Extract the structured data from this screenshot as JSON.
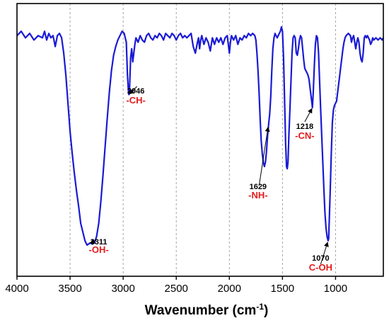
{
  "chart_data": {
    "type": "line",
    "xlabel": "Wavenumber (cm",
    "xlabel_sup": "-1",
    "xlabel_close": ")",
    "ylabel": "",
    "xlim": [
      4000,
      550
    ],
    "x_reversed": true,
    "grid": "vertical dashed",
    "line_color": "#1a1ad6",
    "annotation_color": "#e31b1b",
    "x_ticks": [
      {
        "value": 4000,
        "label": "4000"
      },
      {
        "value": 3500,
        "label": "3500"
      },
      {
        "value": 3000,
        "label": "3000"
      },
      {
        "value": 2500,
        "label": "2500"
      },
      {
        "value": 2000,
        "label": "2000"
      },
      {
        "value": 1500,
        "label": "1500"
      },
      {
        "value": 1000,
        "label": "1000"
      }
    ],
    "series": [
      {
        "points": [
          [
            4000,
            96
          ],
          [
            3960,
            98
          ],
          [
            3920,
            95
          ],
          [
            3880,
            97
          ],
          [
            3840,
            94
          ],
          [
            3800,
            96
          ],
          [
            3760,
            95
          ],
          [
            3740,
            98
          ],
          [
            3720,
            94
          ],
          [
            3700,
            97
          ],
          [
            3680,
            95
          ],
          [
            3660,
            96
          ],
          [
            3640,
            91
          ],
          [
            3620,
            96
          ],
          [
            3600,
            97
          ],
          [
            3580,
            95
          ],
          [
            3560,
            88
          ],
          [
            3540,
            78
          ],
          [
            3520,
            65
          ],
          [
            3500,
            52
          ],
          [
            3480,
            42
          ],
          [
            3460,
            33
          ],
          [
            3440,
            25
          ],
          [
            3420,
            18
          ],
          [
            3400,
            10
          ],
          [
            3380,
            6
          ],
          [
            3360,
            2
          ],
          [
            3340,
            0
          ],
          [
            3311,
            1
          ],
          [
            3290,
            0.5
          ],
          [
            3270,
            1
          ],
          [
            3250,
            4
          ],
          [
            3230,
            10
          ],
          [
            3210,
            20
          ],
          [
            3190,
            32
          ],
          [
            3170,
            45
          ],
          [
            3150,
            58
          ],
          [
            3130,
            70
          ],
          [
            3110,
            80
          ],
          [
            3090,
            87
          ],
          [
            3070,
            91
          ],
          [
            3050,
            94
          ],
          [
            3030,
            96
          ],
          [
            3010,
            98
          ],
          [
            2990,
            97
          ],
          [
            2970,
            93
          ],
          [
            2960,
            78
          ],
          [
            2950,
            70
          ],
          [
            2946,
            69
          ],
          [
            2940,
            72
          ],
          [
            2930,
            86
          ],
          [
            2920,
            90
          ],
          [
            2910,
            84
          ],
          [
            2900,
            88
          ],
          [
            2890,
            92
          ],
          [
            2880,
            95
          ],
          [
            2860,
            93
          ],
          [
            2840,
            96
          ],
          [
            2820,
            94
          ],
          [
            2800,
            93
          ],
          [
            2780,
            96
          ],
          [
            2760,
            97
          ],
          [
            2740,
            95
          ],
          [
            2720,
            94
          ],
          [
            2700,
            96
          ],
          [
            2680,
            95
          ],
          [
            2660,
            97
          ],
          [
            2640,
            96
          ],
          [
            2620,
            94
          ],
          [
            2600,
            97
          ],
          [
            2580,
            96
          ],
          [
            2560,
            95
          ],
          [
            2540,
            97
          ],
          [
            2520,
            96
          ],
          [
            2500,
            94
          ],
          [
            2480,
            96
          ],
          [
            2460,
            97
          ],
          [
            2440,
            95
          ],
          [
            2420,
            96
          ],
          [
            2400,
            95
          ],
          [
            2380,
            96
          ],
          [
            2360,
            97
          ],
          [
            2340,
            91
          ],
          [
            2320,
            88
          ],
          [
            2300,
            93
          ],
          [
            2290,
            95
          ],
          [
            2280,
            90
          ],
          [
            2270,
            94
          ],
          [
            2260,
            96
          ],
          [
            2240,
            92
          ],
          [
            2220,
            95
          ],
          [
            2200,
            93
          ],
          [
            2180,
            89
          ],
          [
            2160,
            95
          ],
          [
            2140,
            92
          ],
          [
            2120,
            95
          ],
          [
            2100,
            93
          ],
          [
            2080,
            95
          ],
          [
            2060,
            92
          ],
          [
            2040,
            95
          ],
          [
            2020,
            96
          ],
          [
            2010,
            92
          ],
          [
            2000,
            88
          ],
          [
            1990,
            93
          ],
          [
            1980,
            96
          ],
          [
            1960,
            94
          ],
          [
            1940,
            96
          ],
          [
            1920,
            92
          ],
          [
            1900,
            95
          ],
          [
            1880,
            94
          ],
          [
            1860,
            96
          ],
          [
            1840,
            95
          ],
          [
            1820,
            97
          ],
          [
            1800,
            96
          ],
          [
            1780,
            97
          ],
          [
            1760,
            96
          ],
          [
            1750,
            94
          ],
          [
            1740,
            88
          ],
          [
            1730,
            80
          ],
          [
            1720,
            70
          ],
          [
            1710,
            58
          ],
          [
            1700,
            48
          ],
          [
            1690,
            42
          ],
          [
            1680,
            38
          ],
          [
            1670,
            36
          ],
          [
            1660,
            38
          ],
          [
            1650,
            43
          ],
          [
            1640,
            50
          ],
          [
            1629,
            56
          ],
          [
            1620,
            60
          ],
          [
            1610,
            68
          ],
          [
            1600,
            80
          ],
          [
            1590,
            90
          ],
          [
            1580,
            95
          ],
          [
            1570,
            97
          ],
          [
            1560,
            96
          ],
          [
            1550,
            95
          ],
          [
            1540,
            96
          ],
          [
            1530,
            97
          ],
          [
            1520,
            98
          ],
          [
            1510,
            100
          ],
          [
            1500,
            98
          ],
          [
            1490,
            86
          ],
          [
            1480,
            66
          ],
          [
            1470,
            46
          ],
          [
            1462,
            36
          ],
          [
            1455,
            35
          ],
          [
            1448,
            38
          ],
          [
            1440,
            50
          ],
          [
            1430,
            62
          ],
          [
            1420,
            75
          ],
          [
            1410,
            88
          ],
          [
            1400,
            95
          ],
          [
            1390,
            96
          ],
          [
            1380,
            95
          ],
          [
            1370,
            88
          ],
          [
            1360,
            87
          ],
          [
            1350,
            90
          ],
          [
            1340,
            94
          ],
          [
            1330,
            96
          ],
          [
            1320,
            95
          ],
          [
            1310,
            90
          ],
          [
            1300,
            85
          ],
          [
            1290,
            81
          ],
          [
            1280,
            80
          ],
          [
            1270,
            79
          ],
          [
            1260,
            78
          ],
          [
            1250,
            76
          ],
          [
            1240,
            72
          ],
          [
            1230,
            68
          ],
          [
            1220,
            64
          ],
          [
            1218,
            63
          ],
          [
            1210,
            70
          ],
          [
            1200,
            82
          ],
          [
            1190,
            92
          ],
          [
            1180,
            96
          ],
          [
            1170,
            95
          ],
          [
            1160,
            88
          ],
          [
            1150,
            75
          ],
          [
            1140,
            62
          ],
          [
            1130,
            50
          ],
          [
            1120,
            38
          ],
          [
            1110,
            26
          ],
          [
            1100,
            15
          ],
          [
            1090,
            8
          ],
          [
            1080,
            4
          ],
          [
            1070,
            2
          ],
          [
            1065,
            3
          ],
          [
            1060,
            10
          ],
          [
            1050,
            25
          ],
          [
            1040,
            42
          ],
          [
            1030,
            56
          ],
          [
            1020,
            62
          ],
          [
            1010,
            64
          ],
          [
            1000,
            65
          ],
          [
            990,
            66
          ],
          [
            980,
            70
          ],
          [
            970,
            74
          ],
          [
            960,
            78
          ],
          [
            950,
            82
          ],
          [
            940,
            86
          ],
          [
            930,
            90
          ],
          [
            920,
            93
          ],
          [
            910,
            95
          ],
          [
            900,
            96
          ],
          [
            880,
            97
          ],
          [
            860,
            96
          ],
          [
            850,
            93
          ],
          [
            840,
            95
          ],
          [
            830,
            96
          ],
          [
            820,
            93
          ],
          [
            810,
            90
          ],
          [
            800,
            93
          ],
          [
            790,
            95
          ],
          [
            780,
            93
          ],
          [
            770,
            88
          ],
          [
            760,
            85
          ],
          [
            750,
            84
          ],
          [
            740,
            88
          ],
          [
            730,
            95
          ],
          [
            720,
            96
          ],
          [
            710,
            95
          ],
          [
            700,
            96
          ],
          [
            690,
            95
          ],
          [
            680,
            94
          ],
          [
            670,
            92
          ],
          [
            660,
            93
          ],
          [
            650,
            95
          ],
          [
            640,
            94
          ],
          [
            620,
            95
          ],
          [
            600,
            94
          ],
          [
            580,
            95
          ],
          [
            560,
            94
          ],
          [
            550,
            95
          ]
        ]
      }
    ],
    "annotations": [
      {
        "x": 3311,
        "value": "3311",
        "group": "-OH-"
      },
      {
        "x": 2946,
        "value": "2946",
        "group": "-CH-"
      },
      {
        "x": 1629,
        "value": "1629",
        "group": "-NH-"
      },
      {
        "x": 1218,
        "value": "1218",
        "group": "-CN-"
      },
      {
        "x": 1070,
        "value": "1070",
        "group": "C-OH"
      }
    ]
  }
}
